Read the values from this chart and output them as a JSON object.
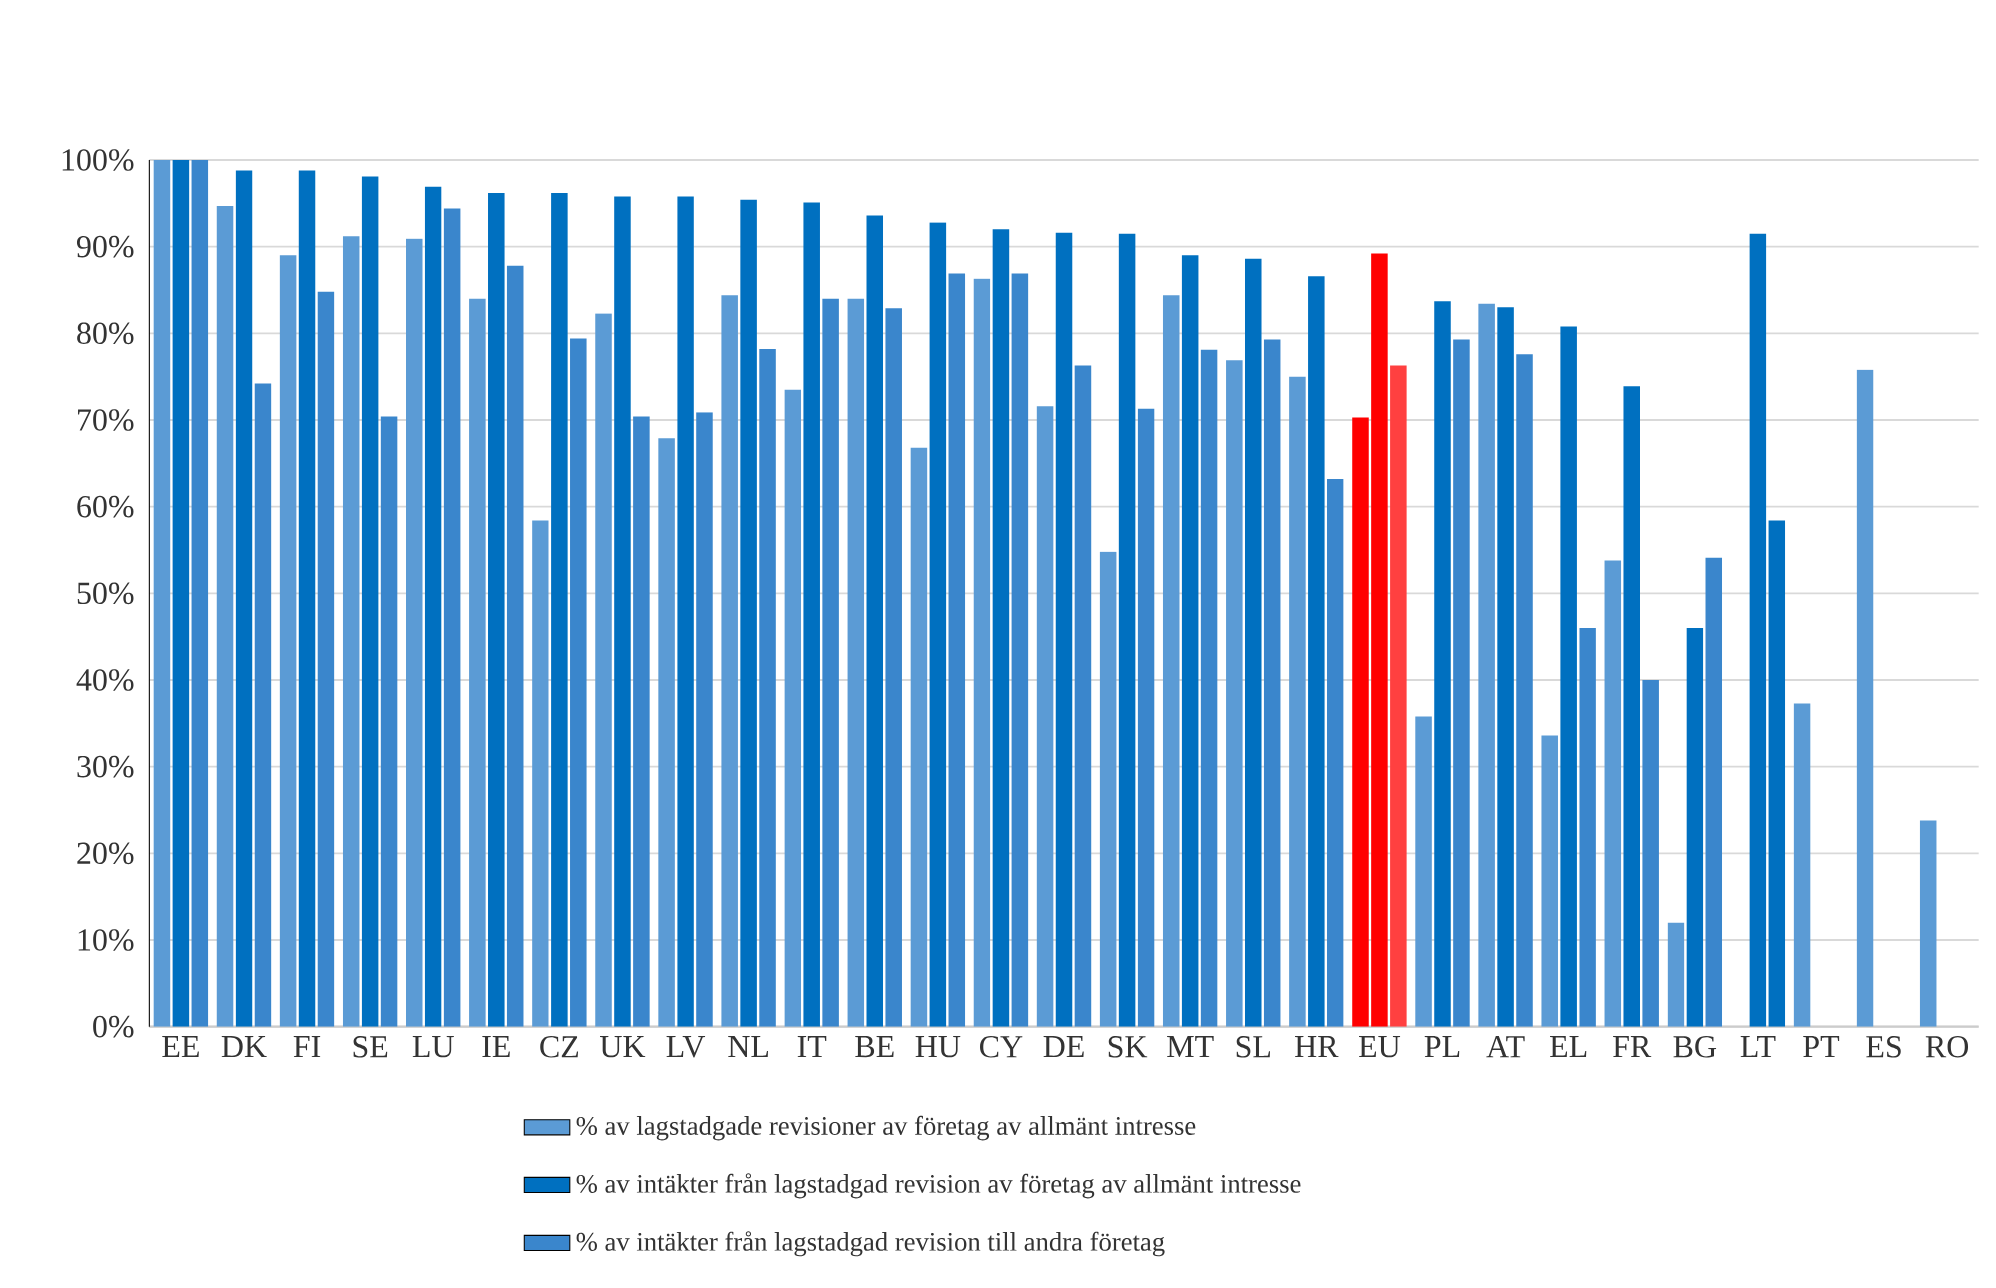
{
  "chart_data": {
    "type": "bar",
    "categories": [
      "EE",
      "DK",
      "FI",
      "SE",
      "LU",
      "IE",
      "CZ",
      "UK",
      "LV",
      "NL",
      "IT",
      "BE",
      "HU",
      "CY",
      "DE",
      "SK",
      "MT",
      "SL",
      "HR",
      "EU",
      "PL",
      "AT",
      "EL",
      "FR",
      "BG",
      "LT",
      "PT",
      "ES",
      "RO"
    ],
    "series": [
      {
        "name": "% av lagstadgade revisioner av företag av allmänt intresse",
        "color": "#5b9bd5",
        "colors": [
          "#5b9bd5",
          "#5b9bd5",
          "#5b9bd5",
          "#5b9bd5",
          "#5b9bd5",
          "#5b9bd5",
          "#5b9bd5",
          "#5b9bd5",
          "#5b9bd5",
          "#5b9bd5",
          "#5b9bd5",
          "#5b9bd5",
          "#5b9bd5",
          "#5b9bd5",
          "#5b9bd5",
          "#5b9bd5",
          "#5b9bd5",
          "#5b9bd5",
          "#5b9bd5",
          "#ff0000",
          "#5b9bd5",
          "#5b9bd5",
          "#5b9bd5",
          "#5b9bd5",
          "#5b9bd5",
          "#5b9bd5",
          "#5b9bd5",
          "#5b9bd5",
          "#5b9bd5"
        ],
        "values": [
          100,
          94.7,
          89,
          91.2,
          90.9,
          84,
          58.4,
          82.3,
          67.9,
          84.4,
          73.5,
          84,
          66.8,
          86.3,
          71.6,
          54.8,
          84.4,
          76.9,
          75,
          70.3,
          35.8,
          83.4,
          33.6,
          53.8,
          12,
          null,
          37.3,
          75.8,
          23.8
        ]
      },
      {
        "name": "% av intäkter från lagstadgad revision av företag av allmänt intresse",
        "color": "#0070c0",
        "colors": [
          "#0070c0",
          "#0070c0",
          "#0070c0",
          "#0070c0",
          "#0070c0",
          "#0070c0",
          "#0070c0",
          "#0070c0",
          "#0070c0",
          "#0070c0",
          "#0070c0",
          "#0070c0",
          "#0070c0",
          "#0070c0",
          "#0070c0",
          "#0070c0",
          "#0070c0",
          "#0070c0",
          "#0070c0",
          "#ff0000",
          "#0070c0",
          "#0070c0",
          "#0070c0",
          "#0070c0",
          "#0070c0",
          "#0070c0",
          "#0070c0",
          "#0070c0",
          "#0070c0"
        ],
        "values": [
          100,
          98.8,
          98.8,
          98.1,
          96.9,
          96.2,
          96.2,
          95.8,
          95.8,
          95.4,
          95.1,
          93.6,
          92.8,
          92,
          91.6,
          91.5,
          89,
          88.6,
          86.6,
          89.2,
          83.7,
          83,
          80.8,
          73.9,
          46,
          91.5,
          null,
          null,
          null
        ]
      },
      {
        "name": "% av intäkter från lagstadgad revision till andra företag",
        "color": "#3a86cc",
        "colors": [
          "#3a86cc",
          "#3a86cc",
          "#3a86cc",
          "#3a86cc",
          "#3a86cc",
          "#3a86cc",
          "#3a86cc",
          "#3a86cc",
          "#3a86cc",
          "#3a86cc",
          "#3a86cc",
          "#3a86cc",
          "#3a86cc",
          "#3a86cc",
          "#3a86cc",
          "#3a86cc",
          "#3a86cc",
          "#3a86cc",
          "#3a86cc",
          "#ff4040",
          "#3a86cc",
          "#3a86cc",
          "#3a86cc",
          "#3a86cc",
          "#3a86cc",
          "#0070c0",
          "#3a86cc",
          "#3a86cc",
          "#3a86cc"
        ],
        "values": [
          100,
          74.2,
          84.8,
          70.4,
          94.4,
          87.8,
          79.4,
          70.4,
          70.9,
          78.2,
          84,
          82.9,
          86.9,
          86.9,
          76.3,
          71.3,
          78.1,
          79.3,
          63.2,
          76.3,
          79.3,
          77.6,
          46,
          40,
          54.1,
          58.4,
          null,
          null,
          null
        ]
      }
    ],
    "ylim": [
      0,
      100
    ],
    "yticks": [
      {
        "value": 0,
        "label": "0%"
      },
      {
        "value": 10,
        "label": "10%"
      },
      {
        "value": 20,
        "label": "20%"
      },
      {
        "value": 30,
        "label": "30%"
      },
      {
        "value": 40,
        "label": "40%"
      },
      {
        "value": 50,
        "label": "50%"
      },
      {
        "value": 60,
        "label": "60%"
      },
      {
        "value": 70,
        "label": "70%"
      },
      {
        "value": 80,
        "label": "80%"
      },
      {
        "value": 90,
        "label": "90%"
      },
      {
        "value": 100,
        "label": "100%"
      }
    ],
    "grid": "y",
    "legend": "bottom"
  }
}
